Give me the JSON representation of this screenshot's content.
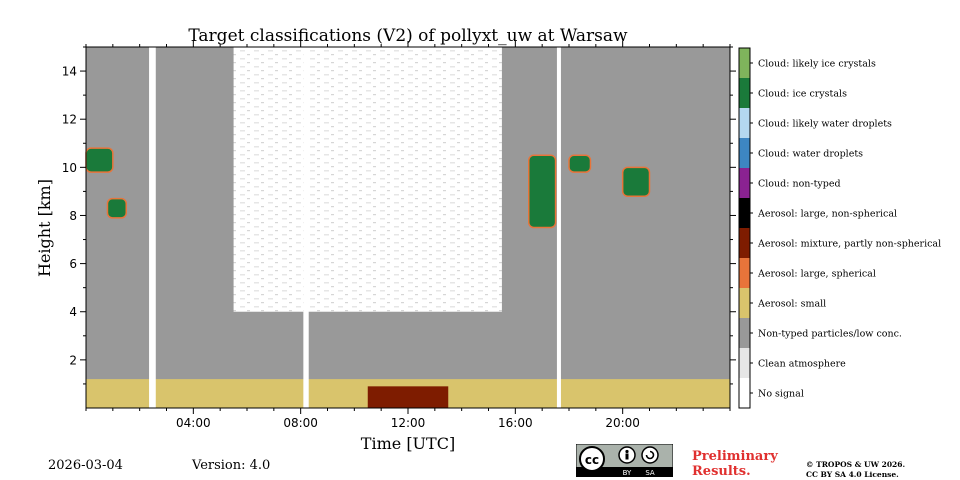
{
  "chart_data": {
    "type": "heatmap",
    "title": "Target classifications (V2) of pollyxt_uw at Warsaw",
    "xlabel": "Time [UTC]",
    "ylabel": "Height [km]",
    "xlim": [
      0,
      24
    ],
    "ylim": [
      0,
      15
    ],
    "x_ticks": [
      4,
      8,
      12,
      16,
      20
    ],
    "x_tick_labels": [
      "04:00",
      "08:00",
      "12:00",
      "16:00",
      "20:00"
    ],
    "y_ticks": [
      2,
      4,
      6,
      8,
      10,
      12,
      14
    ],
    "y_tick_labels": [
      "2",
      "4",
      "6",
      "8",
      "10",
      "12",
      "14"
    ],
    "legend": [
      {
        "label": "Cloud: likely ice crystals",
        "color": "#7fb45c"
      },
      {
        "label": "Cloud: ice crystals",
        "color": "#1a7a3a"
      },
      {
        "label": "Cloud: likely water droplets",
        "color": "#b4d8f0"
      },
      {
        "label": "Cloud: water droplets",
        "color": "#3d86c2"
      },
      {
        "label": "Cloud: non-typed",
        "color": "#8a2291"
      },
      {
        "label": "Aerosol: large, non-spherical",
        "color": "#000000"
      },
      {
        "label": "Aerosol: mixture, partly non-spherical",
        "color": "#7e1c00"
      },
      {
        "label": "Aerosol: large, spherical",
        "color": "#e8743a"
      },
      {
        "label": "Aerosol: small",
        "color": "#d9c46c"
      },
      {
        "label": "Non-typed particles/low conc.",
        "color": "#999999"
      },
      {
        "label": "Clean atmosphere",
        "color": "#e6e6e6"
      },
      {
        "label": "No signal",
        "color": "#ffffff"
      }
    ],
    "no_signal_gaps_hours": [
      [
        2.35,
        2.6
      ],
      [
        8.1,
        8.3
      ],
      [
        17.55,
        17.7
      ]
    ],
    "regions": [
      {
        "class": "Non-typed particles/low conc.",
        "x": [
          0,
          24
        ],
        "y": [
          0,
          15
        ]
      },
      {
        "class": "Clean atmosphere",
        "x": [
          5.5,
          15.5
        ],
        "y": [
          4,
          15
        ]
      },
      {
        "class": "Aerosol: small",
        "x": [
          0,
          24
        ],
        "y": [
          0,
          1.2
        ]
      },
      {
        "class": "Aerosol: mixture, partly non-spherical",
        "x": [
          10.5,
          13.5
        ],
        "y": [
          0,
          0.9
        ]
      },
      {
        "class": "Cloud: ice crystals",
        "x": [
          0,
          1
        ],
        "y": [
          9.8,
          10.8
        ]
      },
      {
        "class": "Cloud: ice crystals",
        "x": [
          0.8,
          1.5
        ],
        "y": [
          7.9,
          8.7
        ]
      },
      {
        "class": "Cloud: ice crystals",
        "x": [
          16.5,
          17.5
        ],
        "y": [
          7.5,
          10.5
        ]
      },
      {
        "class": "Cloud: ice crystals",
        "x": [
          18,
          18.8
        ],
        "y": [
          9.8,
          10.5
        ]
      },
      {
        "class": "Cloud: ice crystals",
        "x": [
          20,
          21
        ],
        "y": [
          8.8,
          10
        ]
      }
    ]
  },
  "footer": {
    "date": "2026-03-04",
    "version": "Version: 4.0",
    "preliminary_line1": "Preliminary",
    "preliminary_line2": "Results.",
    "copyright_line1": "© TROPOS & UW 2026.",
    "copyright_line2": "CC BY SA 4.0 License.",
    "license_badge": {
      "cc": "cc",
      "by": "BY",
      "sa": "SA"
    }
  }
}
